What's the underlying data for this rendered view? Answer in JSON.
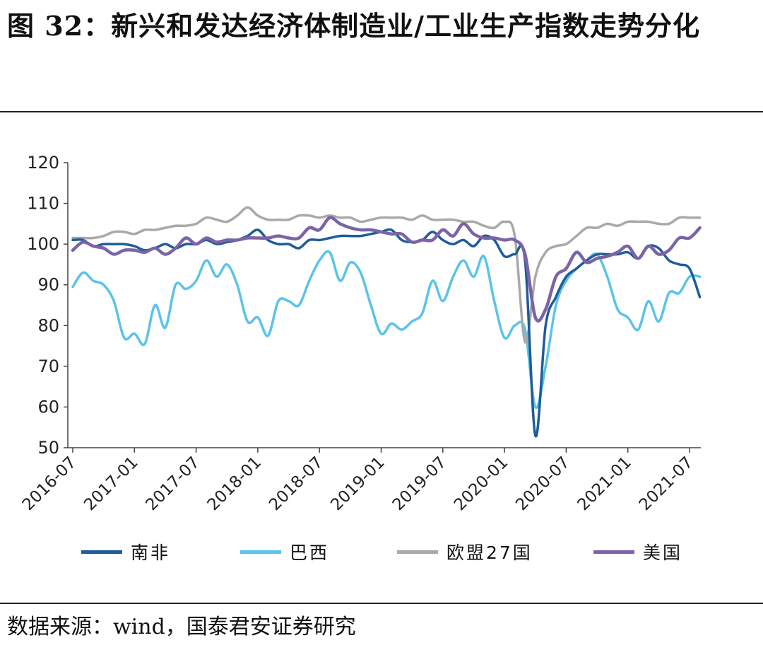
{
  "header": {
    "title": "图 32：新兴和发达经济体制造业/工业生产指数走势分化"
  },
  "footer": {
    "source": "数据来源：wind，国泰君安证券研究"
  },
  "chart_data": {
    "type": "line",
    "title": "",
    "xlabel": "",
    "ylabel": "",
    "ylim": [
      50,
      120
    ],
    "yticks": [
      50,
      60,
      70,
      80,
      90,
      100,
      110,
      120
    ],
    "xticks": [
      "2016-07",
      "2017-01",
      "2017-07",
      "2018-01",
      "2018-07",
      "2019-01",
      "2019-07",
      "2020-01",
      "2020-07",
      "2021-01",
      "2021-07"
    ],
    "x": [
      "2016-07",
      "2016-08",
      "2016-09",
      "2016-10",
      "2016-11",
      "2016-12",
      "2017-01",
      "2017-02",
      "2017-03",
      "2017-04",
      "2017-05",
      "2017-06",
      "2017-07",
      "2017-08",
      "2017-09",
      "2017-10",
      "2017-11",
      "2017-12",
      "2018-01",
      "2018-02",
      "2018-03",
      "2018-04",
      "2018-05",
      "2018-06",
      "2018-07",
      "2018-08",
      "2018-09",
      "2018-10",
      "2018-11",
      "2018-12",
      "2019-01",
      "2019-02",
      "2019-03",
      "2019-04",
      "2019-05",
      "2019-06",
      "2019-07",
      "2019-08",
      "2019-09",
      "2019-10",
      "2019-11",
      "2019-12",
      "2020-01",
      "2020-02",
      "2020-03",
      "2020-04",
      "2020-05",
      "2020-06",
      "2020-07",
      "2020-08",
      "2020-09",
      "2020-10",
      "2020-11",
      "2020-12",
      "2021-01",
      "2021-02",
      "2021-03",
      "2021-04",
      "2021-05",
      "2021-06",
      "2021-07",
      "2021-08"
    ],
    "grid": false,
    "legend_position": "bottom",
    "series": [
      {
        "name": "南非",
        "color": "#1f5c99",
        "values": [
          101,
          101,
          99.5,
          100,
          100,
          100,
          99.5,
          98.5,
          99,
          100,
          99,
          100,
          100,
          101,
          100,
          100.5,
          101,
          102,
          103.5,
          101,
          100,
          100,
          99,
          101,
          101,
          101.5,
          102,
          102,
          102,
          102.5,
          103,
          103.5,
          101,
          100.5,
          101,
          103,
          101,
          100,
          101,
          99.5,
          102,
          101,
          97,
          97.5,
          96,
          53,
          80,
          87,
          92,
          94,
          96,
          97.5,
          97.5,
          97.5,
          98,
          96.5,
          99.5,
          99,
          96,
          95,
          94,
          87
        ]
      },
      {
        "name": "巴西",
        "color": "#5bc3ea",
        "values": [
          89.5,
          93,
          91,
          90,
          86,
          77,
          78,
          75.5,
          85,
          79.5,
          90,
          89,
          91,
          96,
          92,
          95,
          90,
          81,
          82,
          77.5,
          86,
          86,
          85,
          91,
          96,
          98,
          91,
          95.5,
          93,
          85,
          78,
          80.5,
          79,
          81,
          83,
          91,
          86,
          92,
          96,
          92,
          97,
          86,
          77,
          80,
          79,
          60,
          70,
          85,
          91,
          94,
          96,
          97.5,
          92,
          84,
          82,
          79,
          86,
          81,
          88,
          88,
          92,
          92
        ]
      },
      {
        "name": "欧盟27国",
        "color": "#a9a9a9",
        "values": [
          101.5,
          101.5,
          101.5,
          102,
          103,
          103,
          102.5,
          103.5,
          103.5,
          104,
          104.5,
          104.5,
          105,
          106.5,
          106,
          105.5,
          107,
          109,
          107,
          106,
          106,
          106,
          107,
          107,
          106.5,
          107,
          106.5,
          106.5,
          105.5,
          106,
          106.5,
          106.5,
          106.5,
          106,
          107,
          106,
          106,
          106,
          105.5,
          105.5,
          104.5,
          104,
          105.5,
          102,
          76,
          92,
          98,
          99.5,
          100,
          102,
          104,
          104,
          105,
          104.5,
          105.5,
          105.5,
          105.5,
          105,
          105,
          106.5,
          106.5,
          106.5
        ]
      },
      {
        "name": "美国",
        "color": "#7b64a6",
        "values": [
          98.5,
          100.5,
          99.5,
          99,
          97.5,
          98.5,
          98.5,
          98,
          99,
          97.5,
          99,
          101.5,
          100,
          101.5,
          100.5,
          101,
          101,
          101.5,
          101.5,
          101.5,
          102,
          101.5,
          101.5,
          104,
          103.5,
          106.5,
          105,
          104,
          103.5,
          103.5,
          103,
          102.5,
          102.5,
          100.5,
          101,
          101,
          103.5,
          102,
          105,
          102.5,
          101.5,
          101.5,
          101,
          101,
          97.5,
          82,
          84,
          92,
          94,
          98,
          95.5,
          96.5,
          97,
          98,
          99.5,
          96.5,
          99.5,
          97.5,
          98.5,
          101.5,
          101.5,
          104
        ]
      }
    ]
  }
}
